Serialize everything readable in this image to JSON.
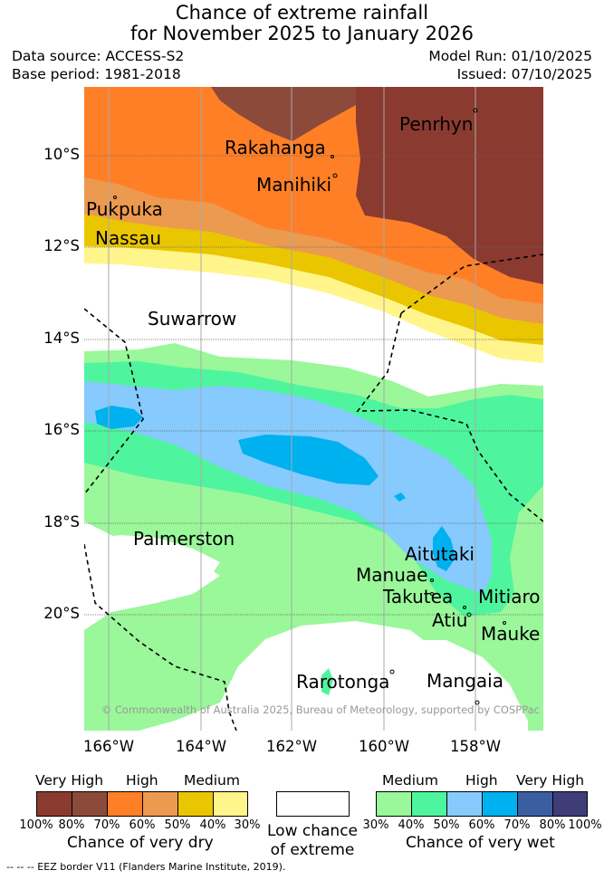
{
  "title_line1": "Chance of extreme rainfall",
  "title_line2": "for November 2025 to January 2026",
  "data_source": "Data source: ACCESS-S2",
  "base_period": "Base period: 1981-2018",
  "model_run": "Model Run: 01/10/2025",
  "issued": "Issued: 07/10/2025",
  "copyright": "© Commonwealth of Australia 2025, Bureau of Meteorology, supported by COSPPac",
  "lat_labels": [
    "10°S",
    "12°S",
    "14°S",
    "16°S",
    "18°S",
    "20°S"
  ],
  "lon_labels": [
    "166°W",
    "164°W",
    "162°W",
    "160°W",
    "158°W"
  ],
  "places": {
    "penrhyn": "Penrhyn",
    "rakahanga": "Rakahanga",
    "manihiki": "Manihiki",
    "pukpuka": "Pukpuka",
    "nassau": "Nassau",
    "suwarrow": "Suwarrow",
    "palmerston": "Palmerston",
    "aitutaki": "Aitutaki",
    "manuae": "Manuae",
    "takutea": "Takutea",
    "mitiaro": "Mitiaro",
    "atiu": "Atiu",
    "mauke": "Mauke",
    "rarotonga": "Rarotonga",
    "mangaia": "Mangaia"
  },
  "legend": {
    "dry_heads": [
      "Very High",
      "High",
      "Medium"
    ],
    "dry_ticks": [
      "100%",
      "80%",
      "70%",
      "60%",
      "50%",
      "40%",
      "30%"
    ],
    "dry_caption": "Chance of very dry",
    "dry_colors": [
      "#8b3a30",
      "#8b4a3a",
      "#ff7f27",
      "#ec9a4f",
      "#eac600",
      "#fff58a"
    ],
    "low_caption_1": "Low chance",
    "low_caption_2": "of extreme",
    "wet_heads": [
      "Medium",
      "High",
      "Very High"
    ],
    "wet_ticks": [
      "30%",
      "40%",
      "50%",
      "60%",
      "70%",
      "80%",
      "100%"
    ],
    "wet_caption": "Chance of very wet",
    "wet_colors": [
      "#9af79a",
      "#4ef59e",
      "#86cafe",
      "#00b1ef",
      "#3b5ea0",
      "#3f3c7a"
    ]
  },
  "footnote": "-- -- -- EEZ border V11 (Flanders Marine Institute, 2019)."
}
